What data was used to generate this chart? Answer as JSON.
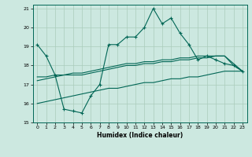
{
  "xlabel": "Humidex (Indice chaleur)",
  "xlim": [
    -0.5,
    23.5
  ],
  "ylim": [
    15,
    21.2
  ],
  "yticks": [
    15,
    16,
    17,
    18,
    19,
    20,
    21
  ],
  "xticks": [
    0,
    1,
    2,
    3,
    4,
    5,
    6,
    7,
    8,
    9,
    10,
    11,
    12,
    13,
    14,
    15,
    16,
    17,
    18,
    19,
    20,
    21,
    22,
    23
  ],
  "bg_color": "#cce8e0",
  "grid_color": "#aaccbb",
  "line_color": "#006655",
  "line1_x": [
    0,
    1,
    2,
    3,
    4,
    5,
    6,
    7,
    8,
    9,
    10,
    11,
    12,
    13,
    14,
    15,
    16,
    17,
    18,
    19,
    20,
    21,
    22,
    23
  ],
  "line1_y": [
    19.1,
    18.5,
    17.5,
    15.7,
    15.6,
    15.5,
    16.4,
    17.0,
    19.1,
    19.1,
    19.5,
    19.5,
    20.0,
    21.0,
    20.2,
    20.5,
    19.7,
    19.1,
    18.3,
    18.5,
    18.3,
    18.1,
    18.0,
    17.7
  ],
  "line2_x": [
    0,
    1,
    2,
    3,
    4,
    5,
    6,
    7,
    8,
    9,
    10,
    11,
    12,
    13,
    14,
    15,
    16,
    17,
    18,
    19,
    20,
    21,
    22,
    23
  ],
  "line2_y": [
    17.2,
    17.3,
    17.4,
    17.5,
    17.5,
    17.5,
    17.6,
    17.7,
    17.8,
    17.9,
    18.0,
    18.0,
    18.1,
    18.1,
    18.2,
    18.2,
    18.3,
    18.3,
    18.4,
    18.4,
    18.5,
    18.5,
    18.0,
    17.7
  ],
  "line3_x": [
    0,
    1,
    2,
    3,
    4,
    5,
    6,
    7,
    8,
    9,
    10,
    11,
    12,
    13,
    14,
    15,
    16,
    17,
    18,
    19,
    20,
    21,
    22,
    23
  ],
  "line3_y": [
    17.4,
    17.4,
    17.5,
    17.5,
    17.6,
    17.6,
    17.7,
    17.8,
    17.9,
    18.0,
    18.1,
    18.1,
    18.2,
    18.2,
    18.3,
    18.3,
    18.4,
    18.4,
    18.5,
    18.5,
    18.5,
    18.5,
    18.1,
    17.7
  ],
  "line4_x": [
    0,
    1,
    2,
    3,
    4,
    5,
    6,
    7,
    8,
    9,
    10,
    11,
    12,
    13,
    14,
    15,
    16,
    17,
    18,
    19,
    20,
    21,
    22,
    23
  ],
  "line4_y": [
    16.0,
    16.1,
    16.2,
    16.3,
    16.4,
    16.5,
    16.6,
    16.7,
    16.8,
    16.8,
    16.9,
    17.0,
    17.1,
    17.1,
    17.2,
    17.3,
    17.3,
    17.4,
    17.4,
    17.5,
    17.6,
    17.7,
    17.7,
    17.7
  ]
}
